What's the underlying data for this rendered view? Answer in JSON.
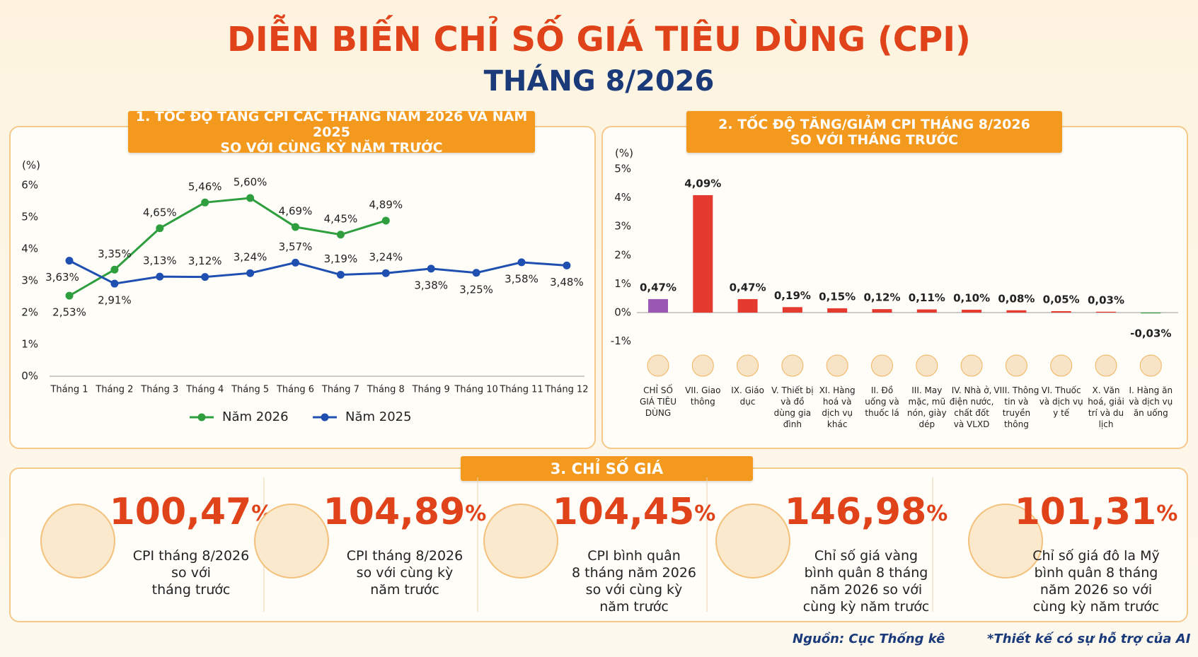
{
  "header": {
    "title": "DIỄN BIẾN CHỈ SỐ GIÁ TIÊU DÙNG (CPI)",
    "subtitle": "THÁNG 8/2026"
  },
  "chart_data": [
    {
      "type": "line",
      "title": "1. TỐC ĐỘ TĂNG CPI CÁC THÁNG NĂM 2026 VÀ NĂM 2025\nSO VỚI CÙNG KỲ NĂM TRƯỚC",
      "y_label": "(%)",
      "categories": [
        "Tháng 1",
        "Tháng 2",
        "Tháng 3",
        "Tháng 4",
        "Tháng 5",
        "Tháng 6",
        "Tháng 7",
        "Tháng 8",
        "Tháng 9",
        "Tháng 10",
        "Tháng 11",
        "Tháng 12"
      ],
      "series": [
        {
          "name": "Năm 2026",
          "color": "#2e9e3e",
          "values": [
            2.53,
            3.35,
            4.65,
            5.46,
            5.6,
            4.69,
            4.45,
            4.89,
            null,
            null,
            null,
            null
          ],
          "value_labels": [
            "2,53%",
            "3,35%",
            "4,65%",
            "5,46%",
            "5,60%",
            "4,69%",
            "4,45%",
            "4,89%",
            null,
            null,
            null,
            null
          ]
        },
        {
          "name": "Năm 2025",
          "color": "#1f4fb0",
          "values": [
            3.63,
            2.91,
            3.13,
            3.12,
            3.24,
            3.57,
            3.19,
            3.24,
            3.38,
            3.25,
            3.58,
            3.48
          ],
          "value_labels": [
            "3,63%",
            "2,91%",
            "3,13%",
            "3,12%",
            "3,24%",
            "3,57%",
            "3,19%",
            "3,24%",
            "3,38%",
            "3,25%",
            "3,58%",
            "3,48%"
          ]
        }
      ],
      "ylim": [
        0,
        6
      ],
      "yticks": [
        {
          "value": 0,
          "label": "0%"
        },
        {
          "value": 1,
          "label": "1%"
        },
        {
          "value": 2,
          "label": "2%"
        },
        {
          "value": 3,
          "label": "3%"
        },
        {
          "value": 4,
          "label": "4%"
        },
        {
          "value": 5,
          "label": "5%"
        },
        {
          "value": 6,
          "label": "6%"
        }
      ],
      "grid": false,
      "legend": "bottom"
    },
    {
      "type": "bar",
      "title": "2. TỐC ĐỘ TĂNG/GIẢM CPI THÁNG 8/2026\nSO VỚI THÁNG TRƯỚC",
      "y_label": "(%)",
      "categories": [
        "CHỈ SỐ GIÁ TIÊU DÙNG",
        "VII. Giao thông",
        "IX. Giáo dục",
        "V. Thiết bị và đồ dùng gia đình",
        "XI. Hàng hoá và dịch vụ khác",
        "II. Đồ uống và thuốc lá",
        "III. May mặc, mũ nón, giày dép",
        "IV. Nhà ở, điện nước, chất đốt và VLXD",
        "VIII. Thông tin và truyền thông",
        "VI. Thuốc và dịch vụ y tế",
        "X. Văn hoá, giải trí và du lịch",
        "I. Hàng ăn và dịch vụ ăn uống"
      ],
      "values": [
        0.47,
        4.09,
        0.47,
        0.19,
        0.15,
        0.12,
        0.11,
        0.1,
        0.08,
        0.05,
        0.03,
        -0.03
      ],
      "value_labels": [
        "0,47%",
        "4,09%",
        "0,47%",
        "0,19%",
        "0,15%",
        "0,12%",
        "0,11%",
        "0,10%",
        "0,08%",
        "0,05%",
        "0,03%",
        "-0,03%"
      ],
      "colors": [
        "#9b59b6",
        "#e53a2f",
        "#e53a2f",
        "#e53a2f",
        "#e53a2f",
        "#e53a2f",
        "#e53a2f",
        "#e53a2f",
        "#e53a2f",
        "#e53a2f",
        "#e53a2f",
        "#3aa64a"
      ],
      "ylim": [
        -1,
        5
      ],
      "yticks": [
        {
          "value": -1,
          "label": "-1%"
        },
        {
          "value": 0,
          "label": "0%"
        },
        {
          "value": 1,
          "label": "1%"
        },
        {
          "value": 2,
          "label": "2%"
        },
        {
          "value": 3,
          "label": "3%"
        },
        {
          "value": 4,
          "label": "4%"
        },
        {
          "value": 5,
          "label": "5%"
        }
      ],
      "grid": false
    }
  ],
  "summary": {
    "title": "3. CHỈ SỐ GIÁ",
    "cards": [
      {
        "number": "100,47",
        "unit": "%",
        "text": "CPI tháng 8/2026\nso với\ntháng trước"
      },
      {
        "number": "104,89",
        "unit": "%",
        "text": "CPI tháng 8/2026\nso với cùng kỳ\nnăm trước"
      },
      {
        "number": "104,45",
        "unit": "%",
        "text": "CPI bình quân\n8 tháng năm 2026\nso với cùng kỳ\nnăm trước"
      },
      {
        "number": "146,98",
        "unit": "%",
        "text": "Chỉ số giá vàng\nbình quân 8 tháng\nnăm 2026 so với\ncùng kỳ năm trước"
      },
      {
        "number": "101,31",
        "unit": "%",
        "text": "Chỉ số giá đô la Mỹ\nbình quân 8 tháng\nnăm 2026 so với\ncùng kỳ năm trước"
      }
    ]
  },
  "footer": {
    "source": "Nguồn: Cục Thống kê",
    "note": "*Thiết kế có sự hỗ trợ của AI"
  }
}
